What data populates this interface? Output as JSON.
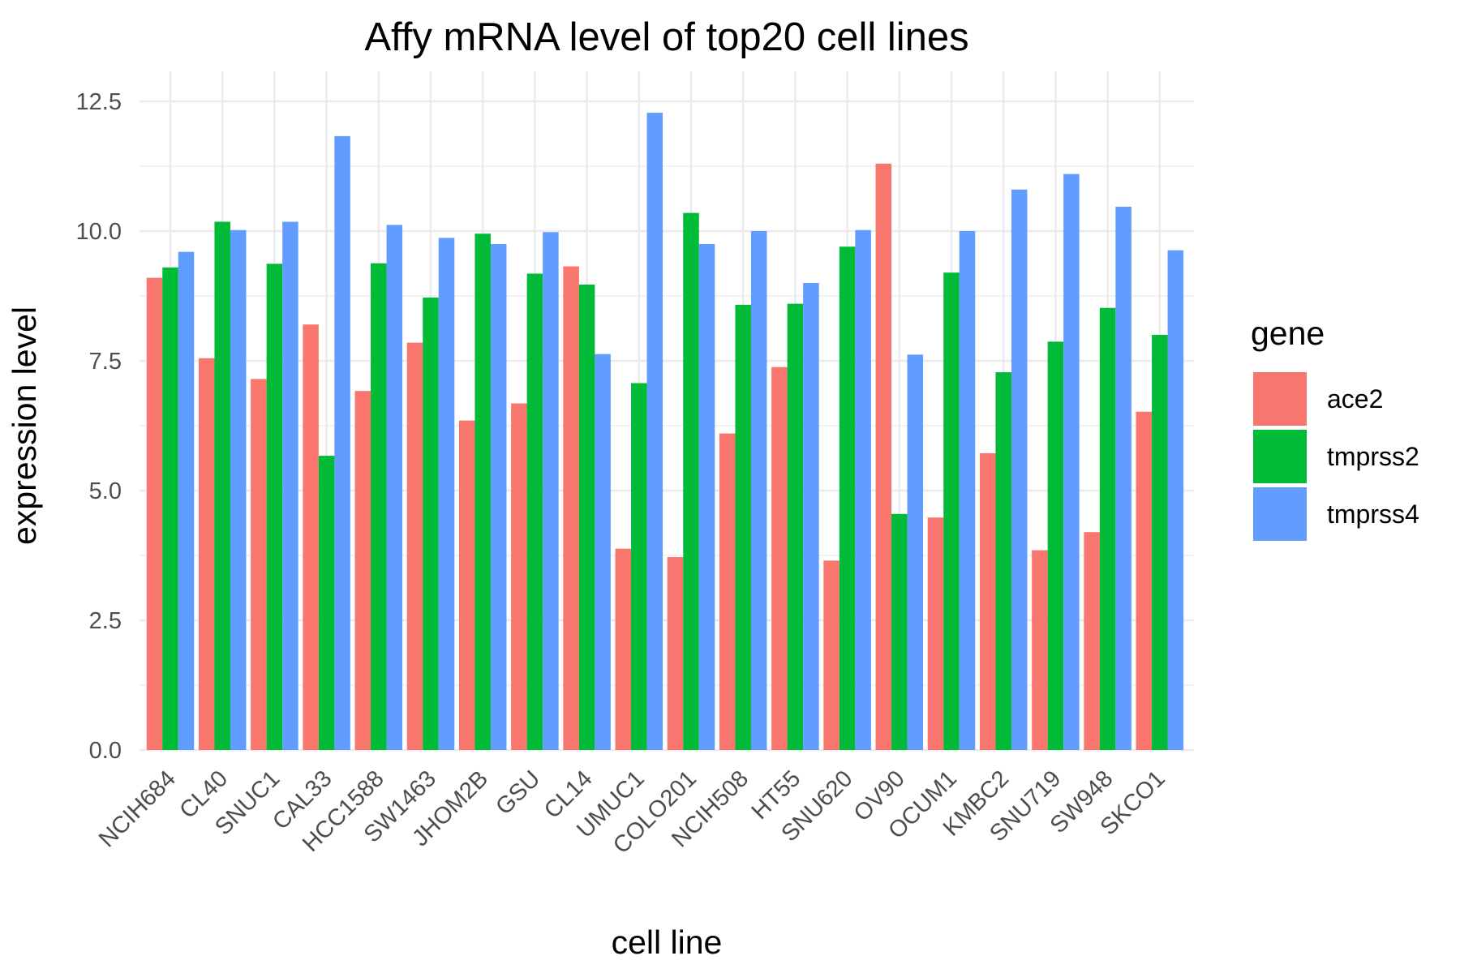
{
  "chart_data": {
    "type": "bar",
    "title": "Affy mRNA level of top20 cell lines",
    "xlabel": "cell line",
    "ylabel": "expression level",
    "ylim": [
      0,
      13.2
    ],
    "yticks": [
      "0.0",
      "2.5",
      "5.0",
      "7.5",
      "10.0",
      "12.5"
    ],
    "grid": true,
    "legend_title": "gene",
    "legend_position": "right",
    "categories": [
      "NCIH684",
      "CL40",
      "SNUC1",
      "CAL33",
      "HCC1588",
      "SW1463",
      "JHOM2B",
      "GSU",
      "CL14",
      "UMUC1",
      "COLO201",
      "NCIH508",
      "HT55",
      "SNU620",
      "OV90",
      "OCUM1",
      "KMBC2",
      "SNU719",
      "SW948",
      "SKCO1"
    ],
    "series": [
      {
        "name": "ace2",
        "color": "#f8766d",
        "values": [
          9.1,
          7.55,
          7.15,
          8.2,
          6.92,
          7.85,
          6.35,
          6.68,
          9.32,
          3.88,
          3.72,
          6.1,
          7.38,
          3.65,
          11.3,
          4.48,
          5.72,
          3.85,
          4.2,
          6.52
        ]
      },
      {
        "name": "tmprss2",
        "color": "#00ba38",
        "values": [
          9.3,
          10.18,
          9.37,
          5.67,
          9.38,
          8.72,
          9.95,
          9.18,
          8.97,
          7.07,
          10.35,
          8.58,
          8.6,
          9.7,
          4.55,
          9.2,
          7.28,
          7.87,
          8.52,
          8.0
        ]
      },
      {
        "name": "tmprss4",
        "color": "#619cff",
        "values": [
          9.6,
          10.02,
          10.18,
          11.83,
          10.12,
          9.87,
          9.75,
          9.98,
          7.63,
          12.28,
          9.75,
          10.0,
          9.0,
          10.02,
          7.62,
          10.0,
          10.8,
          11.1,
          10.47,
          9.63
        ]
      }
    ]
  }
}
